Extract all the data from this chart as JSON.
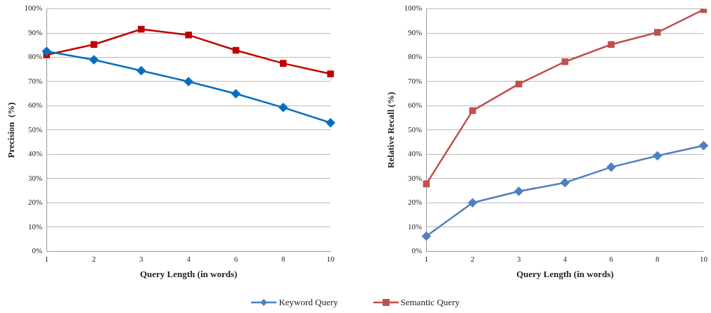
{
  "chart_data": [
    {
      "type": "line",
      "xlabel": "Query Length (in words)",
      "ylabel": "Precision  (%)",
      "categories": [
        "1",
        "2",
        "3",
        "4",
        "6",
        "8",
        "10"
      ],
      "ylim": [
        0,
        100
      ],
      "yticks": [
        {
          "value": 0,
          "label": "0%"
        },
        {
          "value": 10,
          "label": "10%"
        },
        {
          "value": 20,
          "label": "20%"
        },
        {
          "value": 30,
          "label": "30%"
        },
        {
          "value": 40,
          "label": "40%"
        },
        {
          "value": 50,
          "label": "50%"
        },
        {
          "value": 60,
          "label": "60%"
        },
        {
          "value": 70,
          "label": "70%"
        },
        {
          "value": 80,
          "label": "80%"
        },
        {
          "value": 90,
          "label": "90%"
        },
        {
          "value": 100,
          "label": "100%"
        }
      ],
      "grid": "y",
      "legend": false,
      "series": [
        {
          "color": "#0070c0",
          "marker": "diamond",
          "values": [
            82.5,
            79,
            74.5,
            70,
            65,
            59.3,
            53
          ]
        },
        {
          "color": "#c00000",
          "marker": "square",
          "values": [
            81,
            85.3,
            91.6,
            89.2,
            82.9,
            77.5,
            73.2
          ]
        }
      ]
    },
    {
      "type": "line",
      "xlabel": "Query Length (in words)",
      "ylabel": "Relative Recall (%)",
      "categories": [
        "1",
        "2",
        "3",
        "4",
        "6",
        "8",
        "10"
      ],
      "ylim": [
        0,
        100
      ],
      "yticks": [
        {
          "value": 0,
          "label": "0%"
        },
        {
          "value": 10,
          "label": "10%"
        },
        {
          "value": 20,
          "label": "20%"
        },
        {
          "value": 30,
          "label": "30%"
        },
        {
          "value": 40,
          "label": "40%"
        },
        {
          "value": 50,
          "label": "50%"
        },
        {
          "value": 60,
          "label": "60%"
        },
        {
          "value": 70,
          "label": "70%"
        },
        {
          "value": 80,
          "label": "80%"
        },
        {
          "value": 90,
          "label": "90%"
        },
        {
          "value": 100,
          "label": "100%"
        }
      ],
      "grid": "y",
      "legend": "bottom",
      "series": [
        {
          "name": "Keyword Query",
          "color": "#4f81bd",
          "marker": "diamond",
          "values": [
            6.2,
            20,
            24.7,
            28.3,
            34.7,
            39.4,
            43.6
          ]
        },
        {
          "name": "Semantic Query",
          "color": "#c0504d",
          "marker": "square",
          "values": [
            27.8,
            58,
            69,
            78.2,
            85.3,
            90.3,
            99.7
          ]
        }
      ]
    }
  ]
}
